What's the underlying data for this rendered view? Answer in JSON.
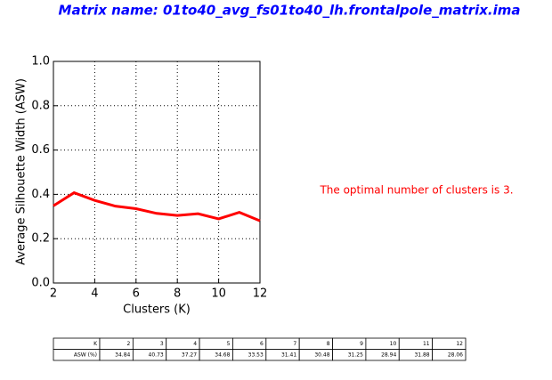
{
  "chart_data": {
    "type": "line",
    "title": "Matrix name: 01to40_avg_fs01to40_lh.frontalpole_matrix.ima",
    "x_label": "Clusters (K)",
    "y_label": "Average Silhouette Width (ASW)",
    "x": [
      2,
      3,
      4,
      5,
      6,
      7,
      8,
      9,
      10,
      11,
      12
    ],
    "series": [
      {
        "name": "ASW",
        "color": "#ff0000",
        "values": [
          0.3484,
          0.4073,
          0.3727,
          0.3468,
          0.3353,
          0.3141,
          0.3048,
          0.3125,
          0.2894,
          0.3188,
          0.2806
        ]
      }
    ],
    "xlim": [
      2,
      12
    ],
    "xticks": [
      2,
      4,
      6,
      8,
      10,
      12
    ],
    "ylim": [
      0,
      1
    ],
    "yticks": [
      {
        "value": 0,
        "label": "0.0"
      },
      0.2,
      0.4,
      0.6,
      0.8,
      {
        "value": 1,
        "label": "1.0"
      }
    ],
    "grid": true,
    "annotation": "The optimal number of clusters is 3."
  },
  "table": {
    "rows": [
      [
        "K",
        2,
        3,
        4,
        5,
        6,
        7,
        8,
        9,
        10,
        11,
        12
      ],
      [
        "ASW (%)",
        34.84,
        40.73,
        37.27,
        34.68,
        33.53,
        31.41,
        30.48,
        31.25,
        28.94,
        31.88,
        28.06
      ]
    ]
  }
}
